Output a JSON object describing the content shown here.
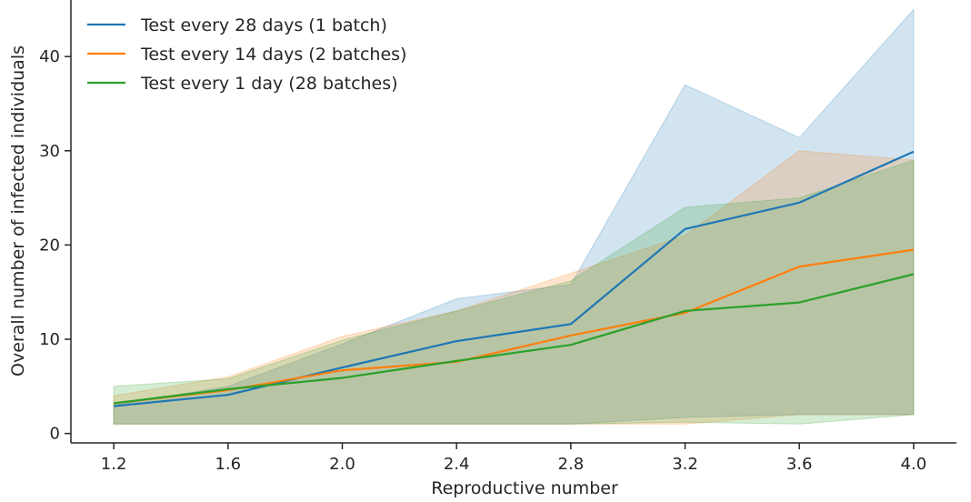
{
  "chart_data": {
    "type": "line",
    "title": "",
    "xlabel": "Reproductive number",
    "ylabel": "Overall number of infected individuals",
    "x": [
      1.2,
      1.6,
      2.0,
      2.4,
      2.8,
      3.2,
      3.6,
      4.0
    ],
    "x_tick_labels": [
      "1.2",
      "1.6",
      "2.0",
      "2.4",
      "2.8",
      "3.2",
      "3.6",
      "4.0"
    ],
    "y_ticks": [
      0,
      10,
      20,
      30,
      40
    ],
    "y_tick_labels": [
      "0",
      "10",
      "20",
      "30",
      "40"
    ],
    "xlim": [
      1.05,
      4.15
    ],
    "ylim": [
      -1,
      46
    ],
    "grid": false,
    "legend_position": "top-left",
    "series": [
      {
        "name": "Test every 28 days (1 batch)",
        "color": "#1f77b4",
        "values": [
          2.9,
          4.1,
          7.0,
          9.8,
          11.6,
          21.7,
          24.5,
          29.9
        ],
        "lower": [
          1.0,
          1.0,
          1.0,
          1.0,
          1.0,
          1.7,
          2.0,
          2.0
        ],
        "upper": [
          3.0,
          5.0,
          9.5,
          14.3,
          15.8,
          37.0,
          31.4,
          45.0
        ]
      },
      {
        "name": "Test every 14 days (2 batches)",
        "color": "#ff7f0e",
        "values": [
          3.2,
          4.6,
          6.7,
          7.6,
          10.4,
          12.8,
          17.7,
          19.5
        ],
        "lower": [
          1.0,
          1.0,
          1.0,
          1.0,
          1.0,
          1.0,
          2.0,
          2.0
        ],
        "upper": [
          4.0,
          6.0,
          10.3,
          13.0,
          17.0,
          21.0,
          30.0,
          29.0
        ]
      },
      {
        "name": "Test every 1 day (28 batches)",
        "color": "#2ca02c",
        "values": [
          3.2,
          4.7,
          5.9,
          7.7,
          9.4,
          13.0,
          13.9,
          16.9
        ],
        "lower": [
          1.0,
          1.0,
          1.0,
          1.0,
          1.0,
          1.2,
          1.0,
          2.0
        ],
        "upper": [
          5.0,
          5.8,
          9.9,
          13.0,
          16.2,
          24.0,
          25.0,
          29.0
        ]
      }
    ]
  }
}
